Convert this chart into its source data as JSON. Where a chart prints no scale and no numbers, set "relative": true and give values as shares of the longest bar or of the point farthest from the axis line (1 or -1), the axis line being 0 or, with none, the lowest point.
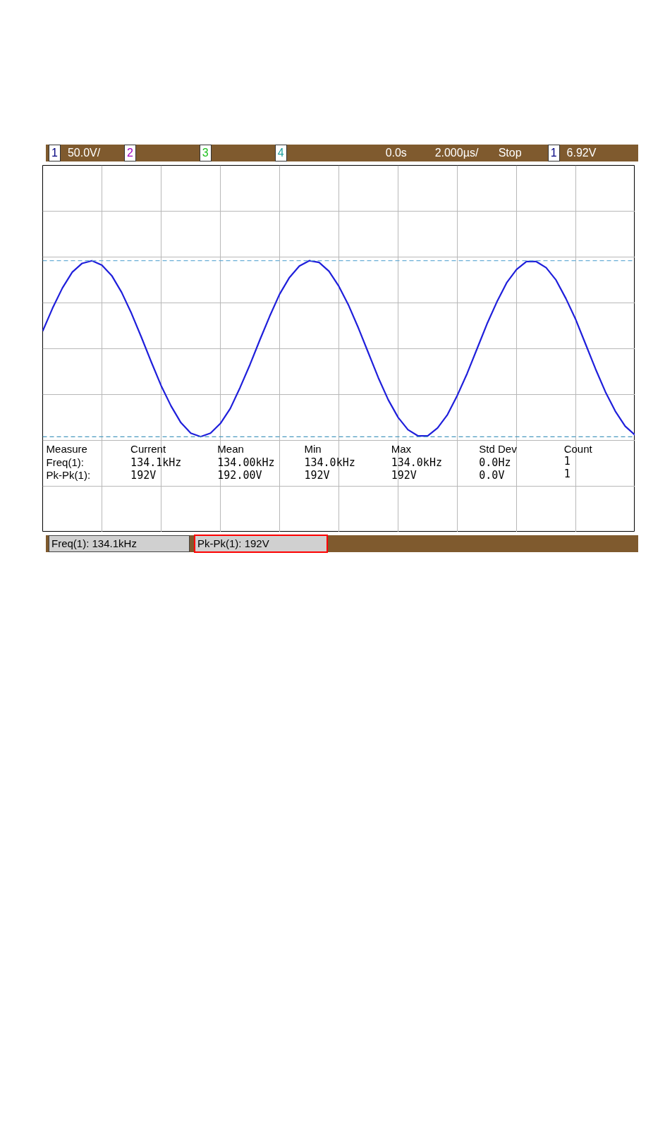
{
  "chart_data": {
    "type": "line",
    "relative": true,
    "grid": true,
    "marker": "none",
    "line_style": "solid",
    "categories": [
      null,
      null,
      null,
      null,
      null,
      null,
      null,
      null,
      null,
      null,
      null,
      null,
      null,
      null,
      null,
      null,
      null,
      null,
      null,
      null,
      null,
      null,
      null,
      null,
      null,
      null,
      null,
      null,
      null,
      null,
      null,
      null,
      null,
      null,
      null,
      null,
      null,
      null,
      null,
      null,
      null,
      null,
      null,
      null,
      null,
      null,
      null,
      null,
      null,
      null,
      null,
      null,
      null,
      null,
      null,
      null,
      null,
      null,
      null,
      null,
      null
    ],
    "series": [
      {
        "color": "#1f1fdb",
        "values": [
          0.2,
          0.46,
          0.69,
          0.87,
          0.97,
          1.0,
          0.95,
          0.83,
          0.64,
          0.4,
          0.13,
          -0.15,
          -0.42,
          -0.65,
          -0.84,
          -0.96,
          -1.0,
          -0.96,
          -0.85,
          -0.68,
          -0.44,
          -0.18,
          0.1,
          0.37,
          0.62,
          0.81,
          0.94,
          1.0,
          0.98,
          0.88,
          0.71,
          0.49,
          0.23,
          -0.05,
          -0.33,
          -0.58,
          -0.78,
          -0.92,
          -0.99,
          -0.99,
          -0.9,
          -0.75,
          -0.53,
          -0.28,
          0.0,
          0.28,
          0.53,
          0.75,
          0.9,
          0.99,
          0.99,
          0.92,
          0.78,
          0.57,
          0.33,
          0.05,
          -0.23,
          -0.49,
          -0.71,
          -0.88,
          -0.98
        ]
      }
    ],
    "ref_lines": [
      {
        "axis": "y",
        "value": 1,
        "color": "#6aaed6",
        "line_style": "dashed"
      },
      {
        "axis": "y",
        "value": -1,
        "color": "#4a9abf",
        "line_style": "dashed"
      }
    ],
    "annotations": [
      "1",
      "50.0V/",
      "2",
      "3",
      "4",
      "0.0s",
      "2.000µs/",
      "Stop",
      "1",
      "6.92V",
      "Measure",
      "Current",
      "Mean",
      "Min",
      "Max",
      "Std Dev",
      "Count",
      "Freq(1):",
      "134.1kHz",
      "134.00kHz",
      "134.0kHz",
      "134.0kHz",
      "0.0Hz",
      "1",
      "Pk-Pk(1):",
      "192V",
      "192.00V",
      "192V",
      "192V",
      "0.0V",
      "1",
      "Freq(1): 134.1kHz",
      "Pk-Pk(1): 192V"
    ]
  }
}
